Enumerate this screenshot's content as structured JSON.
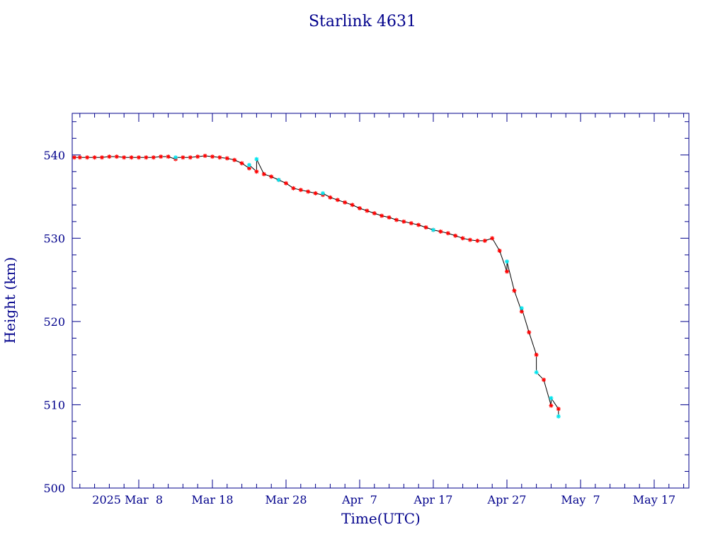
{
  "chart_data": {
    "type": "scatter",
    "title": "Starlink 4631",
    "xlabel": "Time(UTC)",
    "ylabel": "Height (km)",
    "x_tick_labels": [
      "2025 Mar  8",
      "Mar 18",
      "Mar 28",
      "Apr  7",
      "Apr 17",
      "Apr 27",
      "May  7",
      "May 17"
    ],
    "y_tick_labels": [
      "500",
      "510",
      "520",
      "530",
      "540"
    ],
    "ylim": [
      500,
      545
    ],
    "colors": {
      "axis": "#00008b",
      "line": "#000000",
      "marker_primary": "#ff0000",
      "marker_secondary": "#00e5ee"
    },
    "series": [
      {
        "marker": "asterisk",
        "color": "#ff0000",
        "points": [
          [
            "2025-02-27",
            539.7
          ],
          [
            "2025-02-28",
            539.7
          ],
          [
            "2025-03-01",
            539.7
          ],
          [
            "2025-03-02",
            539.7
          ],
          [
            "2025-03-03",
            539.7
          ],
          [
            "2025-03-04",
            539.8
          ],
          [
            "2025-03-05",
            539.8
          ],
          [
            "2025-03-06",
            539.7
          ],
          [
            "2025-03-07",
            539.7
          ],
          [
            "2025-03-08",
            539.7
          ],
          [
            "2025-03-09",
            539.7
          ],
          [
            "2025-03-10",
            539.7
          ],
          [
            "2025-03-11",
            539.8
          ],
          [
            "2025-03-12",
            539.8
          ],
          [
            "2025-03-13",
            539.5
          ],
          [
            "2025-03-14",
            539.7
          ],
          [
            "2025-03-15",
            539.7
          ],
          [
            "2025-03-16",
            539.8
          ],
          [
            "2025-03-17",
            539.9
          ],
          [
            "2025-03-18",
            539.8
          ],
          [
            "2025-03-19",
            539.7
          ],
          [
            "2025-03-20",
            539.6
          ],
          [
            "2025-03-21",
            539.4
          ],
          [
            "2025-03-22",
            539.0
          ],
          [
            "2025-03-23",
            538.4
          ],
          [
            "2025-03-24",
            538.0
          ],
          [
            "2025-03-25",
            537.7
          ],
          [
            "2025-03-26",
            537.4
          ],
          [
            "2025-03-27",
            537.0
          ],
          [
            "2025-03-28",
            536.6
          ],
          [
            "2025-03-29",
            536.0
          ],
          [
            "2025-03-30",
            535.8
          ],
          [
            "2025-03-31",
            535.6
          ],
          [
            "2025-04-01",
            535.4
          ],
          [
            "2025-04-02",
            535.2
          ],
          [
            "2025-04-03",
            534.9
          ],
          [
            "2025-04-04",
            534.6
          ],
          [
            "2025-04-05",
            534.3
          ],
          [
            "2025-04-06",
            534.0
          ],
          [
            "2025-04-07",
            533.6
          ],
          [
            "2025-04-08",
            533.3
          ],
          [
            "2025-04-09",
            533.0
          ],
          [
            "2025-04-10",
            532.7
          ],
          [
            "2025-04-11",
            532.5
          ],
          [
            "2025-04-12",
            532.2
          ],
          [
            "2025-04-13",
            532.0
          ],
          [
            "2025-04-14",
            531.8
          ],
          [
            "2025-04-15",
            531.6
          ],
          [
            "2025-04-16",
            531.3
          ],
          [
            "2025-04-17",
            531.0
          ],
          [
            "2025-04-18",
            530.8
          ],
          [
            "2025-04-19",
            530.6
          ],
          [
            "2025-04-20",
            530.3
          ],
          [
            "2025-04-21",
            530.0
          ],
          [
            "2025-04-22",
            529.8
          ],
          [
            "2025-04-23",
            529.7
          ],
          [
            "2025-04-24",
            529.7
          ],
          [
            "2025-04-25",
            530.0
          ],
          [
            "2025-04-26",
            528.5
          ],
          [
            "2025-04-27",
            526.0
          ],
          [
            "2025-04-28",
            523.7
          ],
          [
            "2025-04-29",
            521.2
          ],
          [
            "2025-04-30",
            518.7
          ],
          [
            "2025-05-01",
            516.0
          ],
          [
            "2025-05-02",
            513.0
          ],
          [
            "2025-05-03",
            509.9
          ],
          [
            "2025-05-04",
            509.5
          ]
        ]
      },
      {
        "marker": "asterisk",
        "color": "#00e5ee",
        "points": [
          [
            "2025-03-13",
            539.7
          ],
          [
            "2025-03-23",
            538.8
          ],
          [
            "2025-03-24",
            539.5
          ],
          [
            "2025-03-27",
            537.0
          ],
          [
            "2025-04-02",
            535.4
          ],
          [
            "2025-04-17",
            531.0
          ],
          [
            "2025-04-27",
            527.2
          ],
          [
            "2025-04-29",
            521.6
          ],
          [
            "2025-05-01",
            513.9
          ],
          [
            "2025-05-03",
            510.8
          ],
          [
            "2025-05-04",
            508.6
          ]
        ]
      }
    ]
  }
}
